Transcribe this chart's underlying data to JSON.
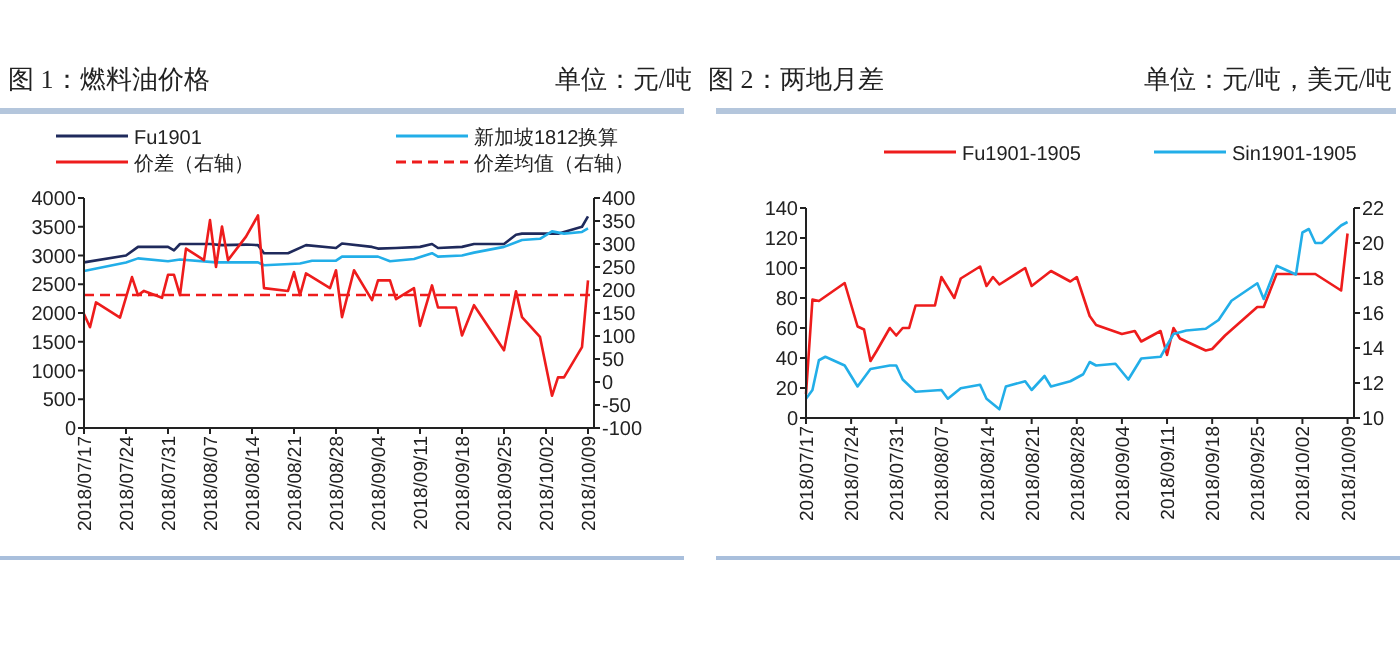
{
  "chart_data": [
    {
      "type": "line",
      "title": "图 1：燃料油价格",
      "subtitle": "单位：元/吨",
      "legend": "top",
      "xlim": [
        "2018-07-17",
        "2018-10-10"
      ],
      "xticks": [
        {
          "value": "2018-07-17",
          "label": "2018/07/17"
        },
        {
          "value": "2018-07-24",
          "label": "2018/07/24"
        },
        {
          "value": "2018-07-31",
          "label": "2018/07/31"
        },
        {
          "value": "2018-08-07",
          "label": "2018/08/07"
        },
        {
          "value": "2018-08-14",
          "label": "2018/08/14"
        },
        {
          "value": "2018-08-21",
          "label": "2018/08/21"
        },
        {
          "value": "2018-08-28",
          "label": "2018/08/28"
        },
        {
          "value": "2018-09-04",
          "label": "2018/09/04"
        },
        {
          "value": "2018-09-11",
          "label": "2018/09/11"
        },
        {
          "value": "2018-09-18",
          "label": "2018/09/18"
        },
        {
          "value": "2018-09-25",
          "label": "2018/09/25"
        },
        {
          "value": "2018-10-02",
          "label": "2018/10/02"
        },
        {
          "value": "2018-10-09",
          "label": "2018/10/09"
        }
      ],
      "ylim": [
        0,
        4000
      ],
      "yticks": [
        0,
        500,
        1000,
        1500,
        2000,
        2500,
        3000,
        3500,
        4000
      ],
      "y2lim": [
        -100,
        400
      ],
      "y2ticks": [
        -100,
        -50,
        0,
        50,
        100,
        150,
        200,
        250,
        300,
        350,
        400
      ],
      "series": [
        {
          "name": "Fu1901",
          "color": "#1f2a5c",
          "x": [
            "2018-07-17",
            "2018-07-24",
            "2018-07-26",
            "2018-07-31",
            "2018-08-01",
            "2018-08-02",
            "2018-08-07",
            "2018-08-09",
            "2018-08-13",
            "2018-08-15",
            "2018-08-16",
            "2018-08-20",
            "2018-08-23",
            "2018-08-28",
            "2018-08-29",
            "2018-09-03",
            "2018-09-04",
            "2018-09-07",
            "2018-09-11",
            "2018-09-13",
            "2018-09-14",
            "2018-09-18",
            "2018-09-20",
            "2018-09-25",
            "2018-09-27",
            "2018-09-28",
            "2018-10-02",
            "2018-10-04",
            "2018-10-08",
            "2018-10-09"
          ],
          "values": [
            2880,
            3000,
            3150,
            3150,
            3090,
            3200,
            3200,
            3180,
            3190,
            3180,
            3040,
            3040,
            3180,
            3130,
            3210,
            3150,
            3120,
            3130,
            3150,
            3200,
            3130,
            3150,
            3200,
            3200,
            3360,
            3380,
            3380,
            3380,
            3500,
            3680
          ]
        },
        {
          "name": "新加坡1812换算",
          "color": "#22aee8",
          "x": [
            "2018-07-17",
            "2018-07-24",
            "2018-07-26",
            "2018-07-31",
            "2018-08-02",
            "2018-08-08",
            "2018-08-15",
            "2018-08-16",
            "2018-08-22",
            "2018-08-24",
            "2018-08-28",
            "2018-08-29",
            "2018-09-04",
            "2018-09-06",
            "2018-09-10",
            "2018-09-13",
            "2018-09-14",
            "2018-09-18",
            "2018-09-20",
            "2018-09-25",
            "2018-09-28",
            "2018-10-01",
            "2018-10-03",
            "2018-10-05",
            "2018-10-08",
            "2018-10-09"
          ],
          "values": [
            2730,
            2880,
            2950,
            2900,
            2930,
            2880,
            2880,
            2830,
            2860,
            2910,
            2910,
            2980,
            2980,
            2900,
            2940,
            3040,
            2980,
            3000,
            3050,
            3150,
            3270,
            3290,
            3420,
            3380,
            3410,
            3470
          ]
        },
        {
          "name": "价差（右轴）",
          "color": "#ee1c1c",
          "axis": "y2",
          "x": [
            "2018-07-17",
            "2018-07-18",
            "2018-07-19",
            "2018-07-23",
            "2018-07-25",
            "2018-07-26",
            "2018-07-27",
            "2018-07-30",
            "2018-07-31",
            "2018-08-01",
            "2018-08-02",
            "2018-08-03",
            "2018-08-06",
            "2018-08-07",
            "2018-08-08",
            "2018-08-09",
            "2018-08-10",
            "2018-08-13",
            "2018-08-15",
            "2018-08-16",
            "2018-08-20",
            "2018-08-21",
            "2018-08-22",
            "2018-08-23",
            "2018-08-27",
            "2018-08-28",
            "2018-08-29",
            "2018-08-31",
            "2018-09-03",
            "2018-09-04",
            "2018-09-06",
            "2018-09-07",
            "2018-09-10",
            "2018-09-11",
            "2018-09-13",
            "2018-09-14",
            "2018-09-17",
            "2018-09-18",
            "2018-09-20",
            "2018-09-25",
            "2018-09-27",
            "2018-09-28",
            "2018-10-01",
            "2018-10-03",
            "2018-10-04",
            "2018-10-05",
            "2018-10-08",
            "2018-10-09"
          ],
          "values": [
            148,
            119,
            173,
            140,
            228,
            189,
            198,
            183,
            233,
            233,
            189,
            290,
            265,
            352,
            250,
            338,
            265,
            316,
            362,
            204,
            198,
            239,
            189,
            236,
            204,
            243,
            141,
            243,
            178,
            221,
            221,
            180,
            204,
            122,
            210,
            162,
            162,
            101,
            167,
            69,
            197,
            141,
            98,
            -30,
            10,
            10,
            76,
            221
          ]
        }
      ],
      "ref_lines": [
        {
          "axis": "y2",
          "value": 189,
          "label": "价差均值（右轴）",
          "color": "#ee1c1c",
          "line_style": "dashed"
        }
      ]
    },
    {
      "type": "line",
      "title": "图 2：两地月差",
      "subtitle": "单位：元/吨，美元/吨",
      "legend": "top",
      "xlim": [
        "2018-07-17",
        "2018-10-10"
      ],
      "xticks": [
        {
          "value": "2018-07-17",
          "label": "2018/07/17"
        },
        {
          "value": "2018-07-24",
          "label": "2018/07/24"
        },
        {
          "value": "2018-07-31",
          "label": "2018/07/31"
        },
        {
          "value": "2018-08-07",
          "label": "2018/08/07"
        },
        {
          "value": "2018-08-14",
          "label": "2018/08/14"
        },
        {
          "value": "2018-08-21",
          "label": "2018/08/21"
        },
        {
          "value": "2018-08-28",
          "label": "2018/08/28"
        },
        {
          "value": "2018-09-04",
          "label": "2018/09/04"
        },
        {
          "value": "2018-09-11",
          "label": "2018/09/11"
        },
        {
          "value": "2018-09-18",
          "label": "2018/09/18"
        },
        {
          "value": "2018-09-25",
          "label": "2018/09/25"
        },
        {
          "value": "2018-10-02",
          "label": "2018/10/02"
        },
        {
          "value": "2018-10-09",
          "label": "2018/10/09"
        }
      ],
      "ylim": [
        0,
        140
      ],
      "yticks": [
        0,
        20,
        40,
        60,
        80,
        100,
        120,
        140
      ],
      "y2lim": [
        10,
        22
      ],
      "y2ticks": [
        10,
        12,
        14,
        16,
        18,
        20,
        22
      ],
      "series": [
        {
          "name": "Fu1901-1905",
          "color": "#ee1c1c",
          "x": [
            "2018-07-17",
            "2018-07-18",
            "2018-07-19",
            "2018-07-23",
            "2018-07-25",
            "2018-07-26",
            "2018-07-27",
            "2018-07-28",
            "2018-07-30",
            "2018-07-31",
            "2018-08-01",
            "2018-08-02",
            "2018-08-03",
            "2018-08-06",
            "2018-08-07",
            "2018-08-09",
            "2018-08-10",
            "2018-08-13",
            "2018-08-14",
            "2018-08-15",
            "2018-08-16",
            "2018-08-20",
            "2018-08-21",
            "2018-08-24",
            "2018-08-27",
            "2018-08-28",
            "2018-08-30",
            "2018-08-31",
            "2018-09-04",
            "2018-09-06",
            "2018-09-07",
            "2018-09-10",
            "2018-09-11",
            "2018-09-12",
            "2018-09-13",
            "2018-09-17",
            "2018-09-18",
            "2018-09-20",
            "2018-09-25",
            "2018-09-26",
            "2018-09-28",
            "2018-10-04",
            "2018-10-08",
            "2018-10-09"
          ],
          "values": [
            16,
            79,
            78,
            90,
            61,
            59,
            38,
            45,
            60,
            55,
            60,
            60,
            75,
            75,
            94,
            80,
            93,
            101,
            88,
            94,
            89,
            100,
            88,
            98,
            91,
            94,
            68,
            62,
            56,
            58,
            51,
            58,
            42,
            60,
            53,
            45,
            46,
            55,
            74,
            74,
            96,
            96,
            85,
            123
          ]
        },
        {
          "name": "Sin1901-1905",
          "color": "#22aee8",
          "axis": "y2",
          "x": [
            "2018-07-17",
            "2018-07-18",
            "2018-07-19",
            "2018-07-20",
            "2018-07-23",
            "2018-07-25",
            "2018-07-27",
            "2018-07-30",
            "2018-07-31",
            "2018-08-01",
            "2018-08-03",
            "2018-08-07",
            "2018-08-08",
            "2018-08-10",
            "2018-08-13",
            "2018-08-14",
            "2018-08-16",
            "2018-08-17",
            "2018-08-20",
            "2018-08-21",
            "2018-08-23",
            "2018-08-24",
            "2018-08-27",
            "2018-08-29",
            "2018-08-30",
            "2018-08-31",
            "2018-09-03",
            "2018-09-05",
            "2018-09-07",
            "2018-09-10",
            "2018-09-12",
            "2018-09-14",
            "2018-09-17",
            "2018-09-19",
            "2018-09-21",
            "2018-09-25",
            "2018-09-26",
            "2018-09-28",
            "2018-10-01",
            "2018-10-02",
            "2018-10-03",
            "2018-10-04",
            "2018-10-05",
            "2018-10-08",
            "2018-10-09"
          ],
          "values": [
            11.1,
            11.6,
            13.3,
            13.5,
            13.0,
            11.8,
            12.8,
            13.0,
            13.0,
            12.2,
            11.5,
            11.6,
            11.1,
            11.7,
            11.9,
            11.1,
            10.5,
            11.8,
            12.1,
            11.6,
            12.4,
            11.8,
            12.1,
            12.5,
            13.2,
            13.0,
            13.1,
            12.2,
            13.4,
            13.5,
            14.8,
            15.0,
            15.1,
            15.6,
            16.7,
            17.7,
            16.8,
            18.7,
            18.2,
            20.6,
            20.8,
            20.0,
            20.0,
            21.0,
            21.2
          ]
        }
      ]
    }
  ]
}
